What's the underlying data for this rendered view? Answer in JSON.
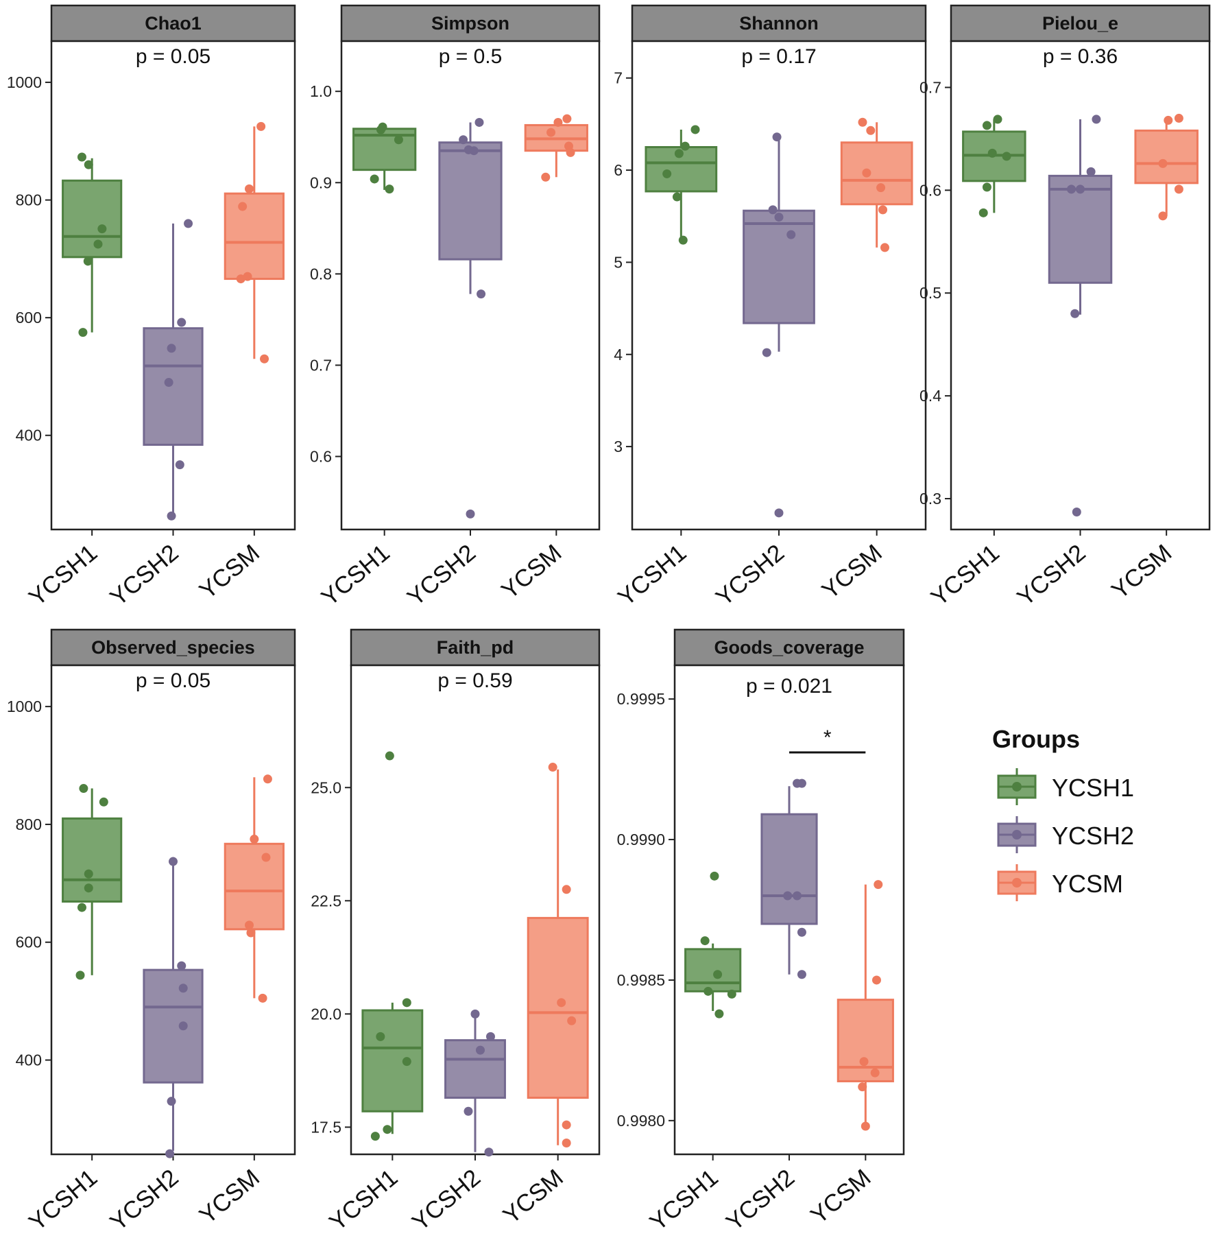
{
  "groups_legend": {
    "title": "Groups",
    "items": [
      {
        "label": "YCSH1",
        "color": "#4e8040",
        "fill": "#7aa56f"
      },
      {
        "label": "YCSH2",
        "color": "#73688f",
        "fill": "#958ca8"
      },
      {
        "label": "YCSM",
        "color": "#ee7a5d",
        "fill": "#f49e86"
      }
    ]
  },
  "chart_data": [
    {
      "type": "boxplot",
      "title": "Chao1",
      "p_label": "p = 0.05",
      "categories": [
        "YCSH1",
        "YCSH2",
        "YCSM"
      ],
      "ylim": [
        240,
        1070
      ],
      "yticks": [
        400,
        600,
        800,
        1000
      ],
      "ytick_labels": [
        "400",
        "600",
        "800",
        "1000"
      ],
      "boxes": [
        {
          "q1": 703,
          "median": 738,
          "q3": 833,
          "whisker_low": 575,
          "whisker_high": 871
        },
        {
          "q1": 384,
          "median": 518,
          "q3": 582,
          "whisker_low": 265,
          "whisker_high": 760
        },
        {
          "q1": 666,
          "median": 728,
          "q3": 811,
          "whisker_low": 530,
          "whisker_high": 925
        }
      ],
      "points": [
        [
          [
            -0.3,
            873
          ],
          [
            -0.1,
            860
          ],
          [
            0.3,
            751
          ],
          [
            0.18,
            725
          ],
          [
            -0.12,
            696
          ],
          [
            -0.27,
            575
          ]
        ],
        [
          [
            0.45,
            760
          ],
          [
            0.25,
            592
          ],
          [
            -0.05,
            548
          ],
          [
            -0.13,
            490
          ],
          [
            0.2,
            350
          ],
          [
            -0.05,
            263
          ]
        ],
        [
          [
            0.2,
            925
          ],
          [
            -0.15,
            819
          ],
          [
            -0.35,
            789
          ],
          [
            -0.4,
            666
          ],
          [
            -0.2,
            670
          ],
          [
            0.3,
            530
          ]
        ]
      ]
    },
    {
      "type": "boxplot",
      "title": "Simpson",
      "p_label": "p = 0.5",
      "categories": [
        "YCSH1",
        "YCSH2",
        "YCSM"
      ],
      "ylim": [
        0.52,
        1.055
      ],
      "yticks": [
        0.6,
        0.7,
        0.8,
        0.9,
        1.0
      ],
      "ytick_labels": [
        "0.6",
        "0.7",
        "0.8",
        "0.9",
        "1.0"
      ],
      "boxes": [
        {
          "q1": 0.914,
          "median": 0.952,
          "q3": 0.959,
          "whisker_low": 0.892,
          "whisker_high": 0.961
        },
        {
          "q1": 0.816,
          "median": 0.935,
          "q3": 0.944,
          "whisker_low": 0.778,
          "whisker_high": 0.966
        },
        {
          "q1": 0.935,
          "median": 0.948,
          "q3": 0.963,
          "whisker_low": 0.906,
          "whisker_high": 0.97
        }
      ],
      "points": [
        [
          [
            -0.05,
            0.961
          ],
          [
            -0.1,
            0.958
          ],
          [
            0.4,
            0.947
          ],
          [
            -0.28,
            0.904
          ],
          [
            0.14,
            0.893
          ]
        ],
        [
          [
            0.25,
            0.966
          ],
          [
            -0.2,
            0.947
          ],
          [
            -0.05,
            0.936
          ],
          [
            0.1,
            0.935
          ],
          [
            0.3,
            0.778
          ],
          [
            0.0,
            0.537
          ]
        ],
        [
          [
            0.3,
            0.97
          ],
          [
            0.05,
            0.966
          ],
          [
            -0.15,
            0.955
          ],
          [
            0.35,
            0.94
          ],
          [
            0.4,
            0.933
          ],
          [
            -0.3,
            0.906
          ]
        ]
      ]
    },
    {
      "type": "boxplot",
      "title": "Shannon",
      "p_label": "p = 0.17",
      "categories": [
        "YCSH1",
        "YCSH2",
        "YCSM"
      ],
      "ylim": [
        2.1,
        7.4
      ],
      "yticks": [
        3,
        4,
        5,
        6,
        7
      ],
      "ytick_labels": [
        "3",
        "4",
        "5",
        "6",
        "7"
      ],
      "boxes": [
        {
          "q1": 5.77,
          "median": 6.08,
          "q3": 6.25,
          "whisker_low": 5.24,
          "whisker_high": 6.44
        },
        {
          "q1": 4.34,
          "median": 5.42,
          "q3": 5.56,
          "whisker_low": 4.03,
          "whisker_high": 6.36
        },
        {
          "q1": 5.63,
          "median": 5.89,
          "q3": 6.3,
          "whisker_low": 5.16,
          "whisker_high": 6.52
        }
      ],
      "points": [
        [
          [
            0.35,
            6.44
          ],
          [
            0.1,
            6.26
          ],
          [
            -0.05,
            6.18
          ],
          [
            -0.35,
            5.96
          ],
          [
            -0.1,
            5.71
          ],
          [
            0.05,
            5.24
          ]
        ],
        [
          [
            -0.05,
            6.36
          ],
          [
            -0.15,
            5.57
          ],
          [
            0.0,
            5.49
          ],
          [
            0.3,
            5.3
          ],
          [
            -0.3,
            4.02
          ],
          [
            0.0,
            2.28
          ]
        ],
        [
          [
            -0.35,
            6.52
          ],
          [
            -0.15,
            6.43
          ],
          [
            -0.25,
            5.97
          ],
          [
            0.1,
            5.81
          ],
          [
            0.15,
            5.57
          ],
          [
            0.2,
            5.16
          ]
        ]
      ]
    },
    {
      "type": "boxplot",
      "title": "Pielou_e",
      "p_label": "p = 0.36",
      "categories": [
        "YCSH1",
        "YCSH2",
        "YCSM"
      ],
      "ylim": [
        0.27,
        0.745
      ],
      "yticks": [
        0.3,
        0.4,
        0.5,
        0.6,
        0.7
      ],
      "ytick_labels": [
        "0.3",
        "0.4",
        "0.5",
        "0.6",
        "0.7"
      ],
      "boxes": [
        {
          "q1": 0.609,
          "median": 0.634,
          "q3": 0.657,
          "whisker_low": 0.578,
          "whisker_high": 0.669
        },
        {
          "q1": 0.51,
          "median": 0.601,
          "q3": 0.614,
          "whisker_low": 0.479,
          "whisker_high": 0.669
        },
        {
          "q1": 0.607,
          "median": 0.626,
          "q3": 0.658,
          "whisker_low": 0.575,
          "whisker_high": 0.67
        }
      ],
      "points": [
        [
          [
            -0.2,
            0.663
          ],
          [
            0.1,
            0.669
          ],
          [
            -0.05,
            0.636
          ],
          [
            0.35,
            0.633
          ],
          [
            -0.2,
            0.603
          ],
          [
            -0.3,
            0.578
          ]
        ],
        [
          [
            0.45,
            0.669
          ],
          [
            0.3,
            0.618
          ],
          [
            -0.25,
            0.601
          ],
          [
            0.0,
            0.601
          ],
          [
            -0.15,
            0.48
          ],
          [
            -0.1,
            0.287
          ]
        ],
        [
          [
            0.05,
            0.668
          ],
          [
            0.35,
            0.67
          ],
          [
            -0.1,
            0.626
          ],
          [
            0.35,
            0.601
          ],
          [
            -0.1,
            0.575
          ]
        ]
      ]
    },
    {
      "type": "boxplot",
      "title": "Observed_species",
      "p_label": "p = 0.05",
      "categories": [
        "YCSH1",
        "YCSH2",
        "YCSM"
      ],
      "ylim": [
        240,
        1070
      ],
      "yticks": [
        400,
        600,
        800,
        1000
      ],
      "ytick_labels": [
        "400",
        "600",
        "800",
        "1000"
      ],
      "boxes": [
        {
          "q1": 669,
          "median": 706,
          "q3": 810,
          "whisker_low": 544,
          "whisker_high": 861
        },
        {
          "q1": 362,
          "median": 490,
          "q3": 553,
          "whisker_low": 246,
          "whisker_high": 740
        },
        {
          "q1": 622,
          "median": 687,
          "q3": 767,
          "whisker_low": 505,
          "whisker_high": 880
        }
      ],
      "points": [
        [
          [
            -0.25,
            861
          ],
          [
            0.35,
            838
          ],
          [
            -0.1,
            716
          ],
          [
            -0.1,
            692
          ],
          [
            -0.3,
            659
          ],
          [
            -0.35,
            544
          ]
        ],
        [
          [
            0.0,
            737
          ],
          [
            0.25,
            560
          ],
          [
            0.3,
            522
          ],
          [
            0.3,
            458
          ],
          [
            -0.05,
            330
          ],
          [
            -0.1,
            241
          ]
        ],
        [
          [
            0.4,
            877
          ],
          [
            0.0,
            775
          ],
          [
            0.35,
            744
          ],
          [
            -0.15,
            629
          ],
          [
            -0.1,
            616
          ],
          [
            0.25,
            505
          ]
        ]
      ]
    },
    {
      "type": "boxplot",
      "title": "Faith_pd",
      "p_label": "p = 0.59",
      "categories": [
        "YCSH1",
        "YCSH2",
        "YCSM"
      ],
      "ylim": [
        16.9,
        27.7
      ],
      "yticks": [
        17.5,
        20.0,
        22.5,
        25.0
      ],
      "ytick_labels": [
        "17.5",
        "20.0",
        "22.5",
        "25.0"
      ],
      "boxes": [
        {
          "q1": 17.85,
          "median": 19.25,
          "q3": 20.08,
          "whisker_low": 17.35,
          "whisker_high": 20.25
        },
        {
          "q1": 18.15,
          "median": 19.0,
          "q3": 19.42,
          "whisker_low": 16.95,
          "whisker_high": 19.98
        },
        {
          "q1": 18.15,
          "median": 20.03,
          "q3": 22.12,
          "whisker_low": 17.1,
          "whisker_high": 25.4
        }
      ],
      "points": [
        [
          [
            -0.08,
            25.7
          ],
          [
            0.42,
            20.25
          ],
          [
            -0.35,
            19.5
          ],
          [
            0.42,
            18.95
          ],
          [
            -0.15,
            17.45
          ],
          [
            -0.5,
            17.3
          ]
        ],
        [
          [
            0.0,
            20.0
          ],
          [
            0.45,
            19.5
          ],
          [
            0.15,
            19.2
          ],
          [
            -0.2,
            17.85
          ],
          [
            0.4,
            16.95
          ]
        ],
        [
          [
            -0.15,
            25.45
          ],
          [
            0.25,
            22.75
          ],
          [
            0.1,
            20.25
          ],
          [
            0.4,
            19.85
          ],
          [
            0.25,
            17.55
          ],
          [
            0.25,
            17.15
          ]
        ]
      ]
    },
    {
      "type": "boxplot",
      "title": "Goods_coverage",
      "p_label": "p = 0.021",
      "significance": {
        "label": "*",
        "from": "YCSH2",
        "to": "YCSM",
        "y": 0.99931
      },
      "categories": [
        "YCSH1",
        "YCSH2",
        "YCSM"
      ],
      "ylim": [
        0.99788,
        0.99962
      ],
      "yticks": [
        0.998,
        0.9985,
        0.999,
        0.9995
      ],
      "ytick_labels": [
        "0.9980",
        "0.9985",
        "0.9990",
        "0.9995"
      ],
      "boxes": [
        {
          "q1": 0.99846,
          "median": 0.99849,
          "q3": 0.99861,
          "whisker_low": 0.99839,
          "whisker_high": 0.99863
        },
        {
          "q1": 0.9987,
          "median": 0.9988,
          "q3": 0.99909,
          "whisker_low": 0.99852,
          "whisker_high": 0.99919
        },
        {
          "q1": 0.99814,
          "median": 0.99819,
          "q3": 0.99843,
          "whisker_low": 0.99798,
          "whisker_high": 0.99884
        }
      ],
      "points": [
        [
          [
            0.05,
            0.99887
          ],
          [
            -0.25,
            0.99864
          ],
          [
            0.15,
            0.99852
          ],
          [
            -0.15,
            0.99846
          ],
          [
            0.6,
            0.99845
          ],
          [
            0.2,
            0.99838
          ]
        ],
        [
          [
            0.25,
            0.9992
          ],
          [
            0.4,
            0.9992
          ],
          [
            -0.05,
            0.9988
          ],
          [
            0.25,
            0.9988
          ],
          [
            0.4,
            0.99867
          ],
          [
            0.4,
            0.99852
          ]
        ],
        [
          [
            0.4,
            0.99884
          ],
          [
            0.35,
            0.9985
          ],
          [
            -0.05,
            0.99821
          ],
          [
            0.3,
            0.99817
          ],
          [
            -0.1,
            0.99812
          ],
          [
            0.0,
            0.99798
          ]
        ]
      ]
    }
  ]
}
